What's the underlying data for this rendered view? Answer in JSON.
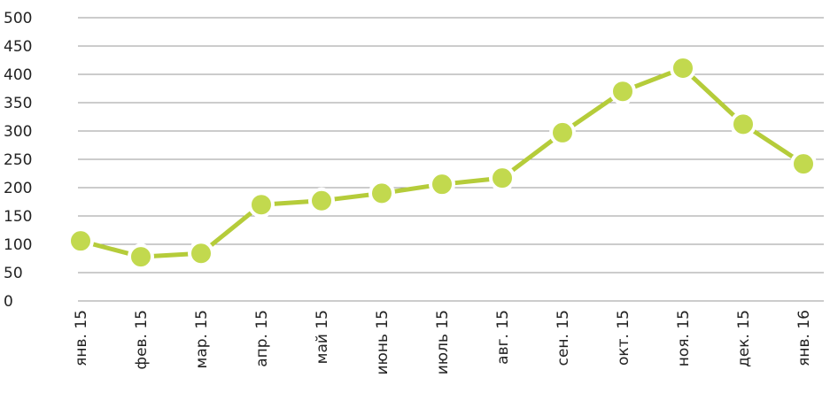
{
  "chart_data": {
    "type": "line",
    "categories": [
      "янв. 15",
      "фев. 15",
      "мар. 15",
      "апр. 15",
      "май 15",
      "июнь 15",
      "июль 15",
      "авг. 15",
      "сен. 15",
      "окт. 15",
      "ноя. 15",
      "дек. 15",
      "янв. 16"
    ],
    "values": [
      106,
      78,
      84,
      170,
      177,
      190,
      206,
      217,
      297,
      370,
      411,
      312,
      242
    ],
    "color": "#b5cc3a",
    "ylim": [
      0,
      500
    ],
    "yticks": [
      0,
      50,
      100,
      150,
      200,
      250,
      300,
      350,
      400,
      450,
      500
    ],
    "grid": true
  }
}
